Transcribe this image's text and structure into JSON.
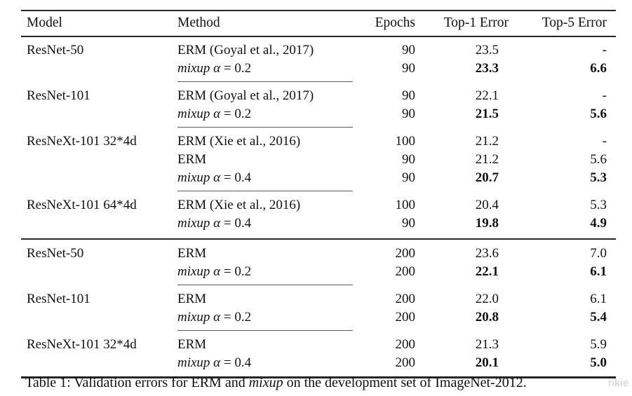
{
  "table": {
    "headers": [
      "Model",
      "Method",
      "Epochs",
      "Top-1 Error",
      "Top-5 Error"
    ],
    "rows": [
      {
        "model": "ResNet-50",
        "method": "ERM (Goyal et al., 2017)",
        "epochs": "90",
        "top1": "23.5",
        "top5": "-"
      },
      {
        "model": "",
        "method_em": "mixup α",
        "method_plain": " = 0.2",
        "epochs": "90",
        "top1": "23.3",
        "top5": "6.6"
      },
      {
        "model": "ResNet-101",
        "method": "ERM (Goyal et al., 2017)",
        "epochs": "90",
        "top1": "22.1",
        "top5": "-"
      },
      {
        "model": "",
        "method_em": "mixup α",
        "method_plain": " = 0.2",
        "epochs": "90",
        "top1": "21.5",
        "top5": "5.6"
      },
      {
        "model": "ResNeXt-101 32*4d",
        "method": "ERM (Xie et al., 2016)",
        "epochs": "100",
        "top1": "21.2",
        "top5": "-"
      },
      {
        "model": "",
        "method": "ERM",
        "epochs": "90",
        "top1": "21.2",
        "top5": "5.6"
      },
      {
        "model": "",
        "method_em": "mixup α",
        "method_plain": " = 0.4",
        "epochs": "90",
        "top1": "20.7",
        "top5": "5.3"
      },
      {
        "model": "ResNeXt-101 64*4d",
        "method": "ERM (Xie et al., 2016)",
        "epochs": "100",
        "top1": "20.4",
        "top5": "5.3"
      },
      {
        "model": "",
        "method_em": "mixup α",
        "method_plain": " = 0.4",
        "epochs": "90",
        "top1": "19.8",
        "top5": "4.9"
      },
      {
        "model": "ResNet-50",
        "method": "ERM",
        "epochs": "200",
        "top1": "23.6",
        "top5": "7.0"
      },
      {
        "model": "",
        "method_em": "mixup α",
        "method_plain": " = 0.2",
        "epochs": "200",
        "top1": "22.1",
        "top5": "6.1"
      },
      {
        "model": "ResNet-101",
        "method": "ERM",
        "epochs": "200",
        "top1": "22.0",
        "top5": "6.1"
      },
      {
        "model": "",
        "method_em": "mixup α",
        "method_plain": " = 0.2",
        "epochs": "200",
        "top1": "20.8",
        "top5": "5.4"
      },
      {
        "model": "ResNeXt-101 32*4d",
        "method": "ERM",
        "epochs": "200",
        "top1": "21.3",
        "top5": "5.9"
      },
      {
        "model": "",
        "method_em": "mixup α",
        "method_plain": " = 0.4",
        "epochs": "200",
        "top1": "20.1",
        "top5": "5.0"
      }
    ]
  },
  "caption": {
    "prefix": "Table 1: Validation errors for ERM and ",
    "em": "mixup",
    "suffix": " on the development set of ImageNet-2012."
  },
  "watermark": "rikie",
  "colors": {
    "text": "#111111",
    "rule_dark": "#262626",
    "rule_light": "#595959",
    "watermark": "#cccccc",
    "background": "#ffffff"
  }
}
